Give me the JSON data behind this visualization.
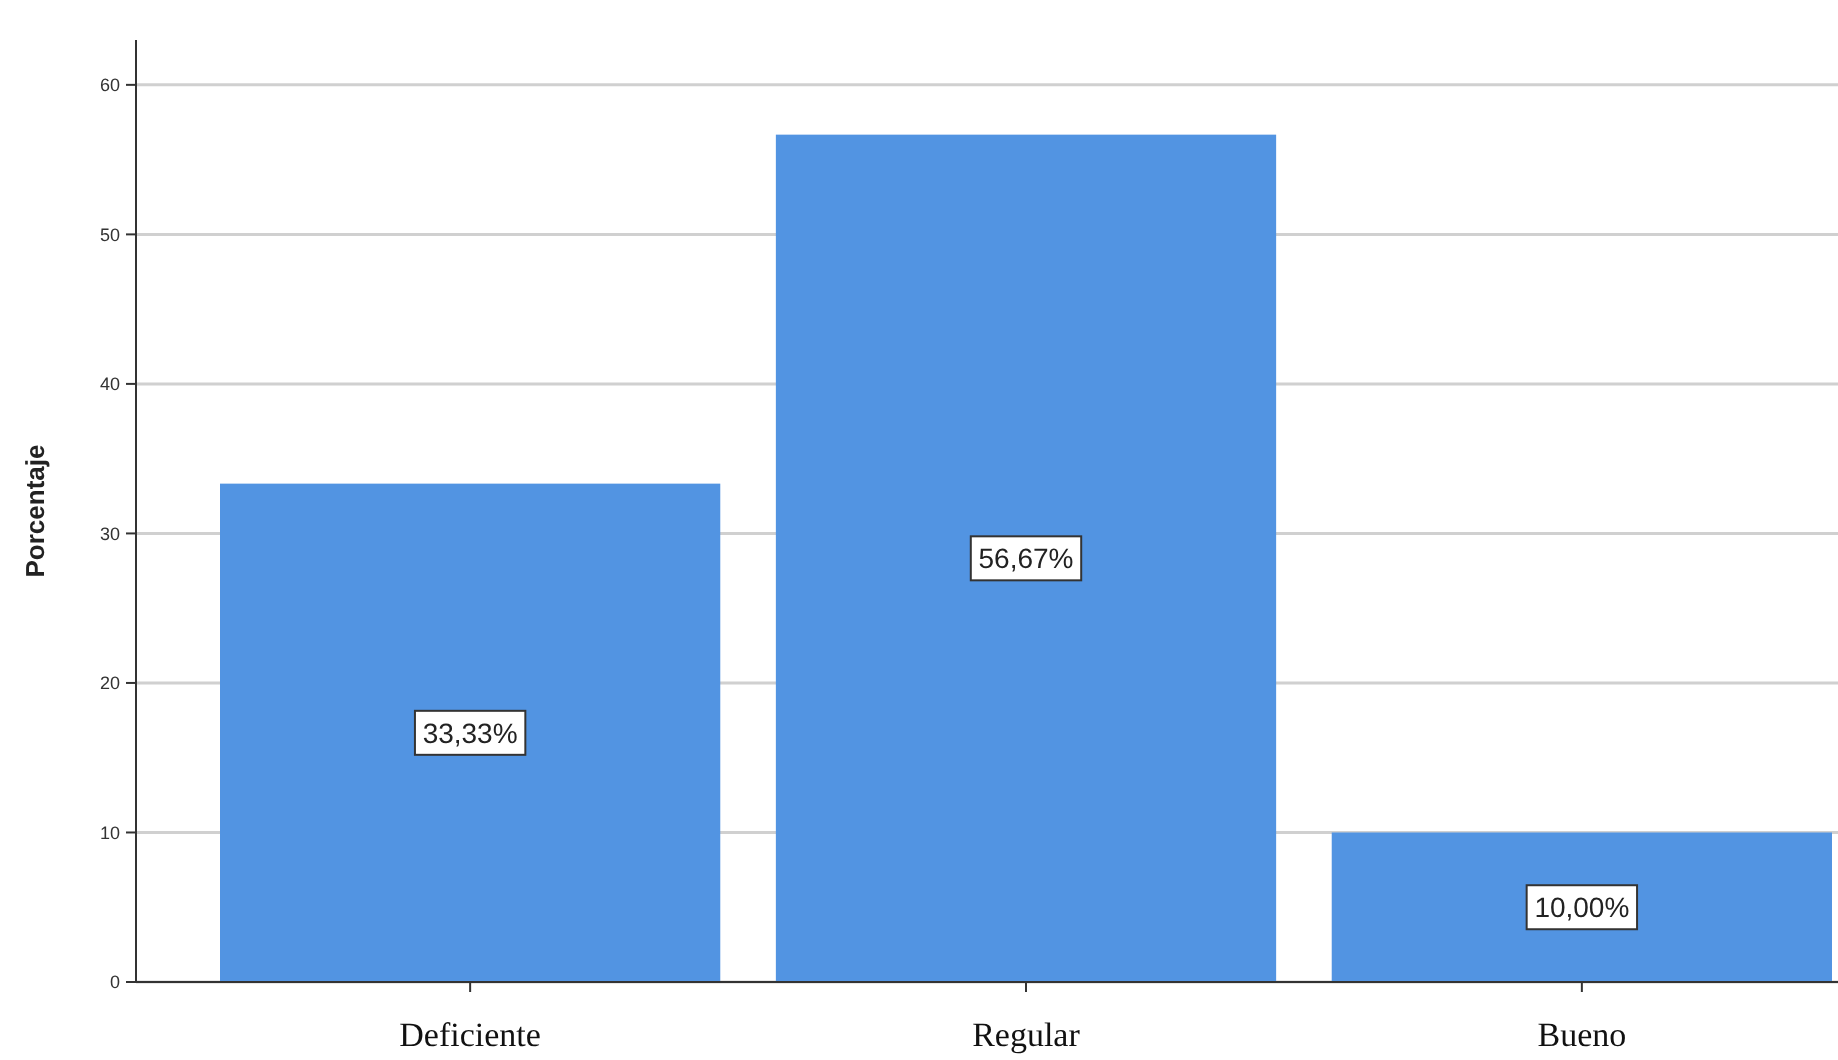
{
  "chart_data": {
    "type": "bar",
    "ylabel": "Porcentaje",
    "categories": [
      "Deficiente",
      "Regular",
      "Bueno"
    ],
    "values": [
      33.33,
      56.67,
      10.0
    ],
    "value_labels": [
      "33,33%",
      "56,67%",
      "10,00%"
    ],
    "color": "#5294e2",
    "ylim": [
      0,
      63
    ],
    "yticks": [
      0,
      10,
      20,
      30,
      40,
      50,
      60
    ],
    "grid": "y"
  }
}
